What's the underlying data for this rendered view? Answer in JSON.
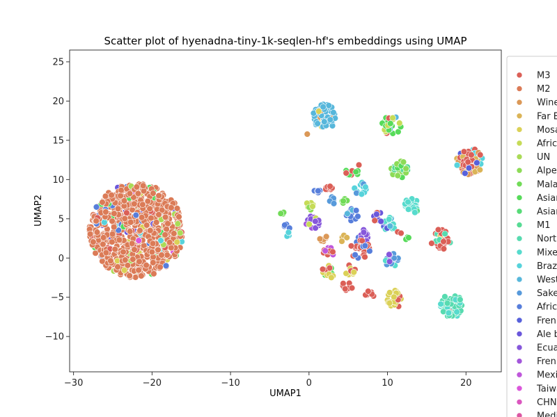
{
  "chart_data": {
    "type": "scatter",
    "title": "Scatter plot of hyenadna-tiny-1k-seqlen-hf's embeddings using UMAP",
    "xlabel": "UMAP1",
    "ylabel": "UMAP2",
    "xlim": [
      -30.5,
      24.5
    ],
    "ylim": [
      -14.5,
      26.5
    ],
    "xticks": [
      -30,
      -20,
      -10,
      0,
      10,
      20
    ],
    "yticks": [
      -10,
      -5,
      0,
      5,
      10,
      15,
      20,
      25
    ],
    "xtick_labels": [
      "−30",
      "−20",
      "−10",
      "0",
      "10",
      "20"
    ],
    "ytick_labels": [
      "−10",
      "−5",
      "0",
      "5",
      "10",
      "15",
      "20",
      "25"
    ],
    "grid": false,
    "legend_position": "right (clipped)",
    "legend": [
      {
        "label": "M3",
        "color": "#db5f57"
      },
      {
        "label": "M2",
        "color": "#db7b57"
      },
      {
        "label": "Wine",
        "color": "#db9857"
      },
      {
        "label": "Far E",
        "color": "#dbb457"
      },
      {
        "label": "Mosa",
        "color": "#dbd157"
      },
      {
        "label": " Afric",
        "color": "#c6db57"
      },
      {
        "label": "UN",
        "color": "#aadb57"
      },
      {
        "label": "Alpe",
        "color": "#8ddb57"
      },
      {
        "label": "Mala",
        "color": "#71db57"
      },
      {
        "label": "Asian",
        "color": "#57db5a"
      },
      {
        "label": "Asian",
        "color": "#57db77"
      },
      {
        "label": "M1",
        "color": "#57db94"
      },
      {
        "label": "North",
        "color": "#57dbb0"
      },
      {
        "label": "Mixe",
        "color": "#57dbcd"
      },
      {
        "label": "Braz",
        "color": "#57d3db"
      },
      {
        "label": "West",
        "color": "#57b7db"
      },
      {
        "label": "Sake",
        "color": "#579adb"
      },
      {
        "label": "Afric",
        "color": "#577edb"
      },
      {
        "label": "Fren",
        "color": "#5761db"
      },
      {
        "label": "Ale b",
        "color": "#6a57db"
      },
      {
        "label": "Ecua",
        "color": "#8657db"
      },
      {
        "label": "Fren",
        "color": "#a357db"
      },
      {
        "label": "Mexi",
        "color": "#bf57db"
      },
      {
        "label": "Taiwa",
        "color": "#db57db"
      },
      {
        "label": "CHN",
        "color": "#db57bf"
      },
      {
        "label": "Medi",
        "color": "#db57a3"
      }
    ],
    "clusters": [
      {
        "center": [
          -22,
          3.5
        ],
        "radius": 6.0,
        "n": 900,
        "seed": 1,
        "main": 1,
        "mix": [
          [
            1,
            0.8
          ],
          [
            0,
            0.05
          ],
          [
            4,
            0.03
          ],
          [
            9,
            0.02
          ],
          [
            17,
            0.03
          ],
          [
            19,
            0.02
          ],
          [
            14,
            0.02
          ],
          [
            23,
            0.01
          ],
          [
            6,
            0.02
          ]
        ]
      },
      {
        "center": [
          2.0,
          18.0
        ],
        "radius": 1.6,
        "n": 60,
        "seed": 2,
        "main": 15,
        "mix": [
          [
            15,
            0.8
          ],
          [
            4,
            0.12
          ],
          [
            2,
            0.08
          ]
        ]
      },
      {
        "center": [
          10.5,
          16.9
        ],
        "radius": 1.2,
        "n": 35,
        "seed": 3,
        "main": 9,
        "mix": [
          [
            9,
            0.5
          ],
          [
            5,
            0.3
          ],
          [
            0,
            0.1
          ],
          [
            15,
            0.1
          ]
        ]
      },
      {
        "center": [
          20.5,
          12.3
        ],
        "radius": 1.7,
        "n": 60,
        "seed": 4,
        "main": 0,
        "mix": [
          [
            0,
            0.5
          ],
          [
            3,
            0.2
          ],
          [
            18,
            0.1
          ],
          [
            14,
            0.1
          ],
          [
            2,
            0.1
          ]
        ]
      },
      {
        "center": [
          11.5,
          11.3
        ],
        "radius": 1.1,
        "n": 30,
        "seed": 5,
        "main": 7,
        "mix": [
          [
            7,
            0.6
          ],
          [
            11,
            0.3
          ],
          [
            9,
            0.1
          ]
        ]
      },
      {
        "center": [
          13.0,
          6.6
        ],
        "radius": 1.0,
        "n": 25,
        "seed": 6,
        "main": 13,
        "mix": [
          [
            13,
            0.7
          ],
          [
            11,
            0.3
          ]
        ]
      },
      {
        "center": [
          16.8,
          2.4
        ],
        "radius": 1.3,
        "n": 30,
        "seed": 7,
        "main": 0,
        "mix": [
          [
            0,
            0.6
          ],
          [
            12,
            0.3
          ],
          [
            4,
            0.1
          ]
        ]
      },
      {
        "center": [
          18.2,
          -6.1
        ],
        "radius": 1.5,
        "n": 50,
        "seed": 8,
        "main": 12,
        "mix": [
          [
            12,
            0.7
          ],
          [
            13,
            0.2
          ],
          [
            0,
            0.05
          ],
          [
            3,
            0.05
          ]
        ]
      },
      {
        "center": [
          11.0,
          -5.2
        ],
        "radius": 1.1,
        "n": 25,
        "seed": 9,
        "main": 4,
        "mix": [
          [
            4,
            0.7
          ],
          [
            0,
            0.2
          ],
          [
            5,
            0.1
          ]
        ]
      },
      {
        "center": [
          10.5,
          -0.2
        ],
        "radius": 0.9,
        "n": 20,
        "seed": 10,
        "main": 20,
        "mix": [
          [
            20,
            0.6
          ],
          [
            16,
            0.3
          ],
          [
            13,
            0.1
          ]
        ]
      },
      {
        "center": [
          10.2,
          4.3
        ],
        "radius": 0.9,
        "n": 20,
        "seed": 11,
        "main": 13,
        "mix": [
          [
            13,
            0.6
          ],
          [
            15,
            0.2
          ],
          [
            18,
            0.2
          ]
        ]
      },
      {
        "center": [
          6.5,
          8.9
        ],
        "radius": 0.8,
        "n": 15,
        "seed": 12,
        "main": 14,
        "mix": [
          [
            14,
            0.8
          ],
          [
            16,
            0.2
          ]
        ]
      },
      {
        "center": [
          5.5,
          11.0
        ],
        "radius": 0.8,
        "n": 12,
        "seed": 13,
        "main": 9,
        "mix": [
          [
            9,
            0.7
          ],
          [
            0,
            0.3
          ]
        ]
      },
      {
        "center": [
          2.5,
          9.2
        ],
        "radius": 0.6,
        "n": 10,
        "seed": 14,
        "main": 0,
        "mix": [
          [
            0,
            1.0
          ]
        ]
      },
      {
        "center": [
          1.0,
          8.5
        ],
        "radius": 0.4,
        "n": 5,
        "seed": 15,
        "main": 17,
        "mix": [
          [
            17,
            1.0
          ]
        ]
      },
      {
        "center": [
          5.5,
          5.5
        ],
        "radius": 0.8,
        "n": 15,
        "seed": 16,
        "main": 17,
        "mix": [
          [
            17,
            0.8
          ],
          [
            15,
            0.2
          ]
        ]
      },
      {
        "center": [
          8.8,
          5.3
        ],
        "radius": 0.8,
        "n": 10,
        "seed": 17,
        "main": 19,
        "mix": [
          [
            19,
            0.6
          ],
          [
            0,
            0.4
          ]
        ]
      },
      {
        "center": [
          7.0,
          2.8
        ],
        "radius": 0.8,
        "n": 15,
        "seed": 18,
        "main": 20,
        "mix": [
          [
            20,
            0.7
          ],
          [
            17,
            0.3
          ]
        ]
      },
      {
        "center": [
          6.5,
          1.2
        ],
        "radius": 1.3,
        "n": 25,
        "seed": 19,
        "main": 0,
        "mix": [
          [
            0,
            0.7
          ],
          [
            17,
            0.3
          ]
        ]
      },
      {
        "center": [
          2.5,
          0.8
        ],
        "radius": 0.7,
        "n": 10,
        "seed": 20,
        "main": 0,
        "mix": [
          [
            0,
            0.8
          ],
          [
            22,
            0.2
          ]
        ]
      },
      {
        "center": [
          2.3,
          -1.8
        ],
        "radius": 0.9,
        "n": 14,
        "seed": 21,
        "main": 9,
        "mix": [
          [
            9,
            0.5
          ],
          [
            0,
            0.3
          ],
          [
            4,
            0.2
          ]
        ]
      },
      {
        "center": [
          5.2,
          -1.5
        ],
        "radius": 0.7,
        "n": 10,
        "seed": 22,
        "main": 4,
        "mix": [
          [
            4,
            0.6
          ],
          [
            0,
            0.4
          ]
        ]
      },
      {
        "center": [
          5.0,
          -3.5
        ],
        "radius": 0.7,
        "n": 10,
        "seed": 23,
        "main": 0,
        "mix": [
          [
            0,
            0.8
          ],
          [
            17,
            0.2
          ]
        ]
      },
      {
        "center": [
          7.8,
          -4.7
        ],
        "radius": 0.6,
        "n": 8,
        "seed": 24,
        "main": 0,
        "mix": [
          [
            0,
            1.0
          ]
        ]
      },
      {
        "center": [
          0.5,
          4.5
        ],
        "radius": 0.9,
        "n": 15,
        "seed": 25,
        "main": 20,
        "mix": [
          [
            20,
            0.6
          ],
          [
            21,
            0.2
          ],
          [
            5,
            0.2
          ]
        ]
      },
      {
        "center": [
          0.0,
          6.5
        ],
        "radius": 0.6,
        "n": 8,
        "seed": 26,
        "main": 5,
        "mix": [
          [
            5,
            0.7
          ],
          [
            7,
            0.3
          ]
        ]
      },
      {
        "center": [
          1.8,
          2.5
        ],
        "radius": 0.5,
        "n": 6,
        "seed": 27,
        "main": 2,
        "mix": [
          [
            2,
            1.0
          ]
        ]
      },
      {
        "center": [
          4.5,
          7.3
        ],
        "radius": 0.5,
        "n": 6,
        "seed": 28,
        "main": 8,
        "mix": [
          [
            8,
            1.0
          ]
        ]
      },
      {
        "center": [
          3.0,
          7.3
        ],
        "radius": 0.5,
        "n": 5,
        "seed": 29,
        "main": 16,
        "mix": [
          [
            16,
            1.0
          ]
        ]
      },
      {
        "center": [
          -2.8,
          4.0
        ],
        "radius": 0.5,
        "n": 4,
        "seed": 30,
        "main": 17,
        "mix": [
          [
            17,
            1.0
          ]
        ]
      },
      {
        "center": [
          -2.5,
          3.0
        ],
        "radius": 0.5,
        "n": 4,
        "seed": 31,
        "main": 14,
        "mix": [
          [
            14,
            1.0
          ]
        ]
      },
      {
        "center": [
          -3.5,
          5.7
        ],
        "radius": 0.3,
        "n": 3,
        "seed": 32,
        "main": 8,
        "mix": [
          [
            8,
            0.7
          ],
          [
            1,
            0.3
          ]
        ]
      },
      {
        "center": [
          12.5,
          2.5
        ],
        "radius": 0.3,
        "n": 3,
        "seed": 33,
        "main": 9,
        "mix": [
          [
            9,
            1.0
          ]
        ]
      },
      {
        "center": [
          11.5,
          3.2
        ],
        "radius": 0.3,
        "n": 2,
        "seed": 34,
        "main": 0,
        "mix": [
          [
            0,
            1.0
          ]
        ]
      },
      {
        "center": [
          4.5,
          2.5
        ],
        "radius": 0.5,
        "n": 4,
        "seed": 35,
        "main": 3,
        "mix": [
          [
            3,
            1.0
          ]
        ]
      },
      {
        "center": [
          -0.2,
          15.7
        ],
        "radius": 0.1,
        "n": 1,
        "seed": 36,
        "main": 2,
        "mix": [
          [
            2,
            1.0
          ]
        ]
      },
      {
        "center": [
          6.3,
          11.9
        ],
        "radius": 0.1,
        "n": 1,
        "seed": 37,
        "main": 0,
        "mix": [
          [
            0,
            1.0
          ]
        ]
      }
    ]
  }
}
